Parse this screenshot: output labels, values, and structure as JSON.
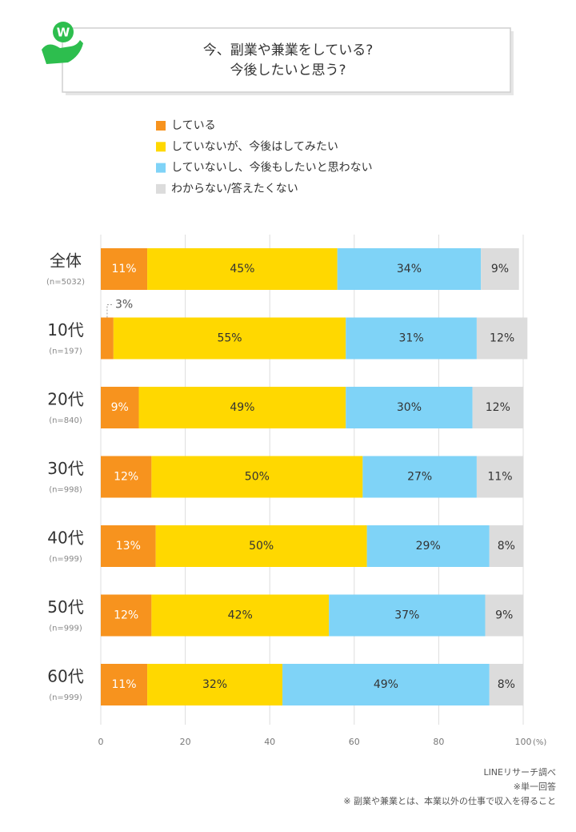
{
  "chart_data": {
    "type": "stacked-bar-horizontal",
    "title_lines": [
      "今、副業や兼業をしている?",
      "今後したいと思う?"
    ],
    "logo_text": "W",
    "categories": [
      "全体",
      "10代",
      "20代",
      "30代",
      "40代",
      "50代",
      "60代"
    ],
    "category_notes": [
      "(n=5032)",
      "(n=197)",
      "(n=840)",
      "(n=998)",
      "(n=999)",
      "(n=999)",
      "(n=999)"
    ],
    "series": [
      {
        "name": "している",
        "color": "#f7931e",
        "label_color": "#ffffff",
        "values": [
          11,
          3,
          9,
          12,
          13,
          12,
          11
        ],
        "value_labels": [
          "11%",
          "3%",
          "9%",
          "12%",
          "13%",
          "12%",
          "11%"
        ]
      },
      {
        "name": "していないが、今後はしてみたい",
        "color": "#ffd800",
        "label_color": "#333333",
        "values": [
          45,
          55,
          49,
          50,
          50,
          42,
          32
        ],
        "value_labels": [
          "45%",
          "55%",
          "49%",
          "50%",
          "50%",
          "42%",
          "32%"
        ]
      },
      {
        "name": "していないし、今後もしたいと思わない",
        "color": "#7fd3f7",
        "label_color": "#333333",
        "values": [
          34,
          31,
          30,
          27,
          29,
          37,
          49
        ],
        "value_labels": [
          "34%",
          "31%",
          "30%",
          "27%",
          "29%",
          "37%",
          "49%"
        ]
      },
      {
        "name": "わからない/答えたくない",
        "color": "#dcdcdc",
        "label_color": "#333333",
        "values": [
          9,
          12,
          12,
          11,
          8,
          9,
          8
        ],
        "value_labels": [
          "9%",
          "12%",
          "12%",
          "11%",
          "8%",
          "9%",
          "8%"
        ]
      }
    ],
    "xlim": [
      0,
      100
    ],
    "xticks": [
      0,
      20,
      40,
      60,
      80,
      100
    ],
    "x_unit": "(%)",
    "grid": true,
    "notes": [
      "LINEリサーチ調べ",
      "※単一回答",
      "※ 副業や兼業とは、本業以外の仕事で収入を得ること"
    ]
  }
}
